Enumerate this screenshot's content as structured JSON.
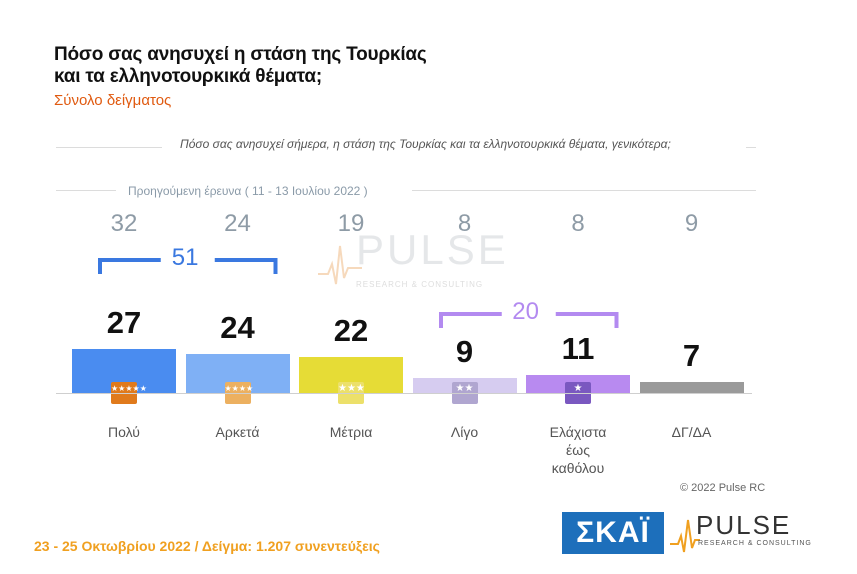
{
  "header": {
    "title_line1": "Πόσο σας ανησυχεί η στάση της Τουρκίας",
    "title_line2": "και τα ελληνοτουρκικά θέματα;",
    "subtitle": "Σύνολο δείγματος",
    "question": "Πόσο σας ανησυχεί σήμερα, η στάση της Τουρκίας και τα ελληνοτουρκικά θέματα, γενικότερα;"
  },
  "previous_label": "Προηγούμενη έρευνα  ( 11 - 13 Ιουλίου  2022 )",
  "chart_data": {
    "type": "bar",
    "title": "Πόσο σας ανησυχεί η στάση της Τουρκίας και τα ελληνοτουρκικά θέματα;",
    "categories": [
      "Πολύ",
      "Αρκετά",
      "Μέτρια",
      "Λίγο",
      "Ελάχιστα έως καθόλου",
      "ΔΓ/ΔΑ"
    ],
    "category_lines": [
      [
        "Πολύ"
      ],
      [
        "Αρκετά"
      ],
      [
        "Μέτρια"
      ],
      [
        "Λίγο"
      ],
      [
        "Ελάχιστα",
        "έως",
        "καθόλου"
      ],
      [
        "ΔΓ/ΔΑ"
      ]
    ],
    "series": [
      {
        "name": "23 - 25 Οκτωβρίου 2022",
        "values": [
          27,
          24,
          22,
          9,
          11,
          7
        ]
      },
      {
        "name": "Προηγούμενη έρευνα ( 11 - 13 Ιουλίου 2022 )",
        "values": [
          32,
          24,
          19,
          8,
          8,
          9
        ]
      }
    ],
    "bar_colors": [
      "#4a8cf0",
      "#7fb0f5",
      "#e6dc36",
      "#d6ccf0",
      "#b88af0",
      "#9a9a9a"
    ],
    "star_colors": [
      "#e07a1c",
      "#ecb060",
      "#ece06a",
      "#b0a6d0",
      "#7a58c0",
      null
    ],
    "star_counts": [
      5,
      4,
      3,
      2,
      1,
      0
    ],
    "groups": [
      {
        "label": "51",
        "categories": [
          0,
          1
        ],
        "color": "#3a78e0"
      },
      {
        "label": "20",
        "categories": [
          3,
          4
        ],
        "color": "#b38af0"
      }
    ],
    "grid": false
  },
  "watermark": {
    "text": "PULSE",
    "sub": "RESEARCH & CONSULTING"
  },
  "copyright": "© 2022 Pulse RC",
  "footer": "23 - 25  Οκτωβρίου  2022  /  Δείγμα:  1.207  συνεντεύξεις",
  "logos": {
    "skai": "ΣΚΑΪ",
    "pulse": "PULSE",
    "pulse_sub": "RESEARCH & CONSULTING"
  },
  "colors": {
    "accent_orange": "#e05a10",
    "footer_orange": "#f0a020",
    "skai_blue": "#1d6fbb"
  }
}
